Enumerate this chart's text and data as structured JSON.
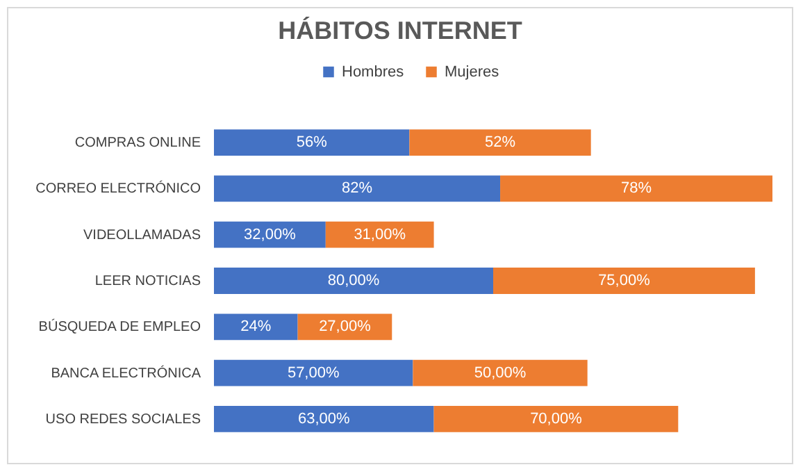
{
  "chart_data": {
    "type": "bar",
    "title": "HÁBITOS INTERNET",
    "orientation": "horizontal",
    "stacked": true,
    "legend": "top",
    "categories": [
      "COMPRAS ONLINE",
      "CORREO ELECTRÓNICO",
      "VIDEOLLAMADAS",
      "LEER NOTICIAS",
      "BÚSQUEDA DE EMPLEO",
      "BANCA ELECTRÓNICA",
      "USO REDES SOCIALES"
    ],
    "series": [
      {
        "name": "Hombres",
        "color": "#4472c4",
        "values": [
          56,
          82,
          32,
          80,
          24,
          57,
          63
        ],
        "value_labels": [
          "56%",
          "82%",
          "32,00%",
          "80,00%",
          "24%",
          "57,00%",
          "63,00%"
        ]
      },
      {
        "name": "Mujeres",
        "color": "#ed7d31",
        "values": [
          52,
          78,
          31,
          75,
          27,
          50,
          70
        ],
        "value_labels": [
          "52%",
          "78%",
          "31,00%",
          "75,00%",
          "27,00%",
          "50,00%",
          "70,00%"
        ]
      }
    ]
  }
}
